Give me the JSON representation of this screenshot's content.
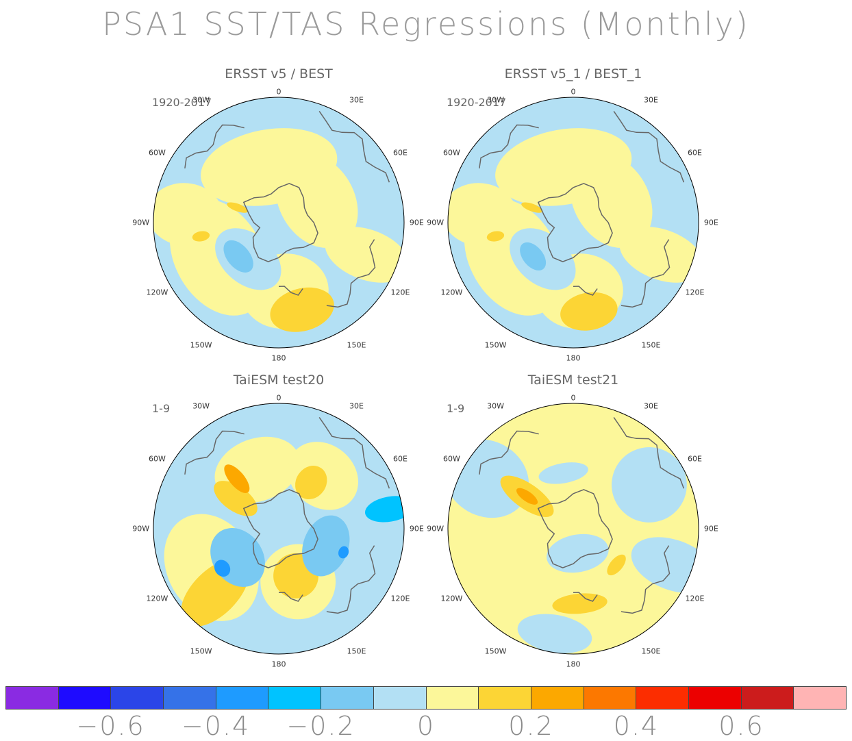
{
  "title": "PSA1 SST/TAS Regressions (Monthly)",
  "chart_data": {
    "type": "heatmap",
    "projection": "south-polar-stereographic",
    "longitude_labels": [
      "0",
      "30E",
      "60E",
      "90E",
      "120E",
      "150E",
      "180",
      "150W",
      "120W",
      "90W",
      "60W",
      "30W"
    ],
    "panels": [
      {
        "name": "ERSST v5 / BEST",
        "period": "1920-2017"
      },
      {
        "name": "ERSST v5_1 / BEST_1",
        "period": "1920-2017"
      },
      {
        "name": "TaiESM test20",
        "period": "1-9"
      },
      {
        "name": "TaiESM test21",
        "period": "1-9"
      }
    ],
    "colorbar": {
      "colors": [
        "#8a2be2",
        "#1e0bff",
        "#2b45e8",
        "#3572e8",
        "#1e9bff",
        "#00c3ff",
        "#79c9f2",
        "#b3e0f4",
        "#fcf79a",
        "#fcd535",
        "#fca800",
        "#fc7800",
        "#fc2d00",
        "#ec0000",
        "#cc1c1c",
        "#ffb4b4"
      ],
      "tick_labels": [
        "−0.6",
        "−0.4",
        "−0.2",
        "0",
        "0.2",
        "0.4",
        "0.6"
      ]
    }
  }
}
